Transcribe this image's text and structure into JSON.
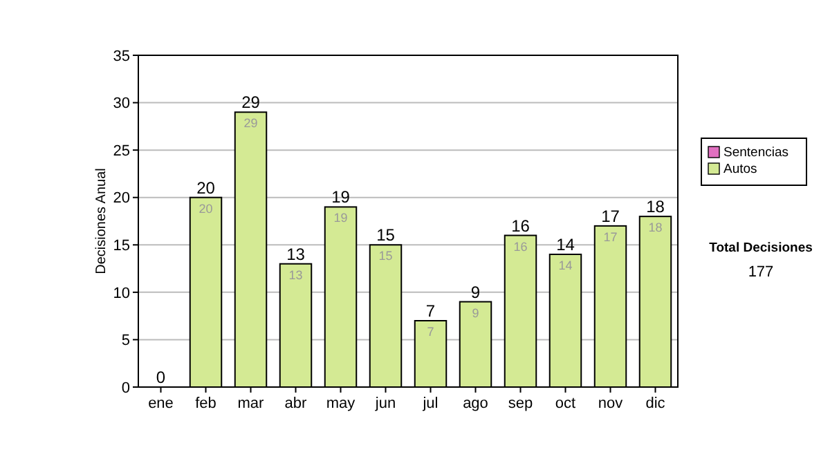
{
  "chart_data": {
    "type": "bar",
    "stacked": true,
    "ylabel": "Decisiones Anual",
    "categories": [
      "ene",
      "feb",
      "mar",
      "abr",
      "may",
      "jun",
      "jul",
      "ago",
      "sep",
      "oct",
      "nov",
      "dic"
    ],
    "series": [
      {
        "name": "Sentencias",
        "color": "#e070c0",
        "values": [
          0,
          0,
          0,
          0,
          0,
          0,
          0,
          0,
          0,
          0,
          0,
          0
        ]
      },
      {
        "name": "Autos",
        "color": "#d4ea94",
        "values": [
          0,
          20,
          29,
          13,
          19,
          15,
          7,
          9,
          16,
          14,
          17,
          18
        ],
        "value_labels": [
          null,
          "20",
          "29",
          "13",
          "19",
          "15",
          "7",
          "9",
          "16",
          "14",
          "17",
          "18"
        ]
      }
    ],
    "totals": [
      "0",
      "20",
      "29",
      "13",
      "19",
      "15",
      "7",
      "9",
      "16",
      "14",
      "17",
      "18"
    ],
    "ylim": [
      0,
      35
    ],
    "yticks": [
      0,
      5,
      10,
      15,
      20,
      25,
      30,
      35
    ],
    "grid": "y",
    "legend": "right",
    "annotations": [
      "Total Decisiones",
      "177"
    ]
  }
}
